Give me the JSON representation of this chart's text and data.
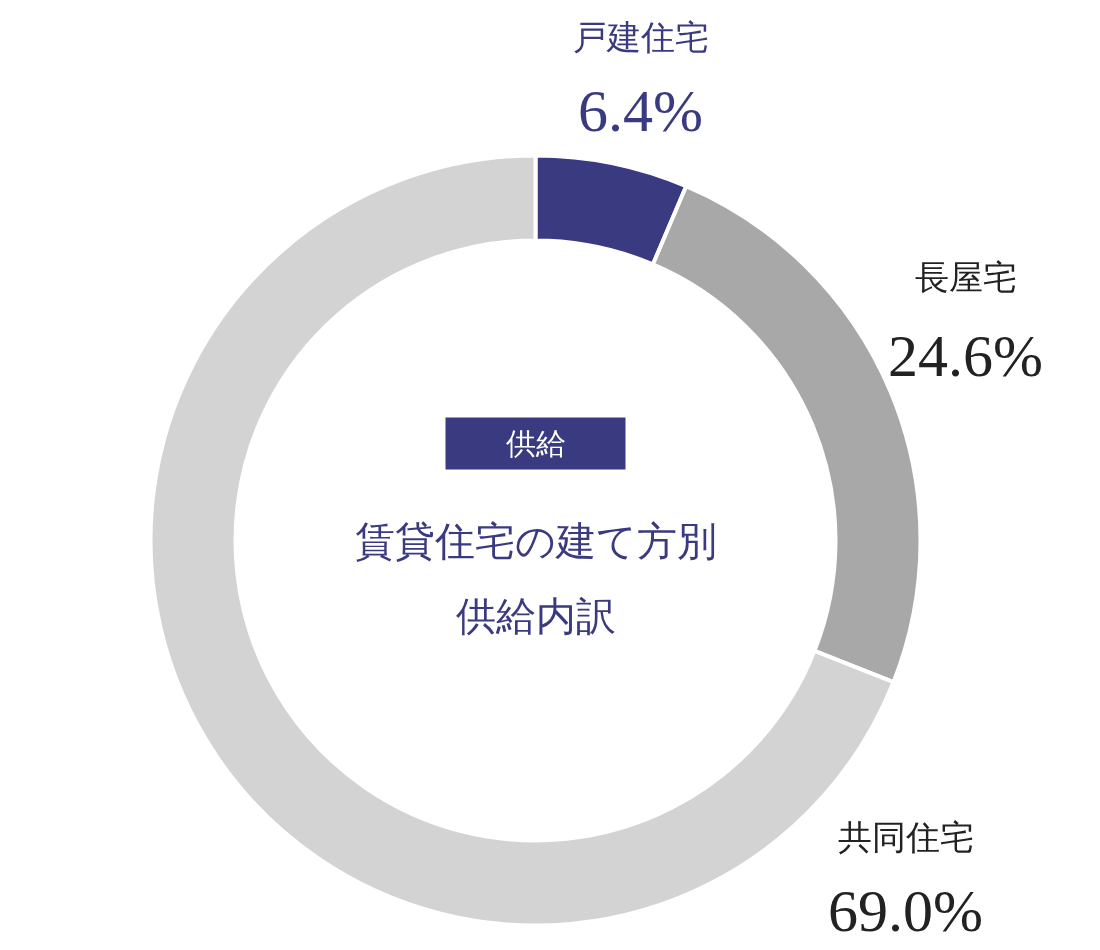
{
  "chart_data": {
    "type": "donut",
    "title": "賃貸住宅の建て方別供給内訳",
    "subtitle": "供給",
    "categories": [
      "戸建住宅",
      "長屋宅",
      "共同住宅"
    ],
    "values": [
      6.4,
      24.6,
      69.0
    ],
    "value_labels": [
      "6.4%",
      "24.6%",
      "69.0%"
    ],
    "colors": [
      "#3a3a80",
      "#a8a8a8",
      "#d3d3d3"
    ]
  }
}
